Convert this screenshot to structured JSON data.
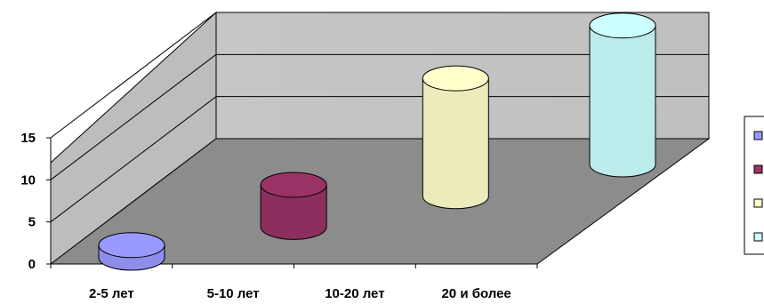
{
  "chart_data": {
    "type": "bar",
    "style": "3d-cylinder",
    "categories": [
      "2-5 лет",
      "5-10 лет",
      "10-20 лет",
      "20 и более"
    ],
    "values": [
      1.5,
      5,
      14,
      16.5
    ],
    "colors": [
      "#9999ff",
      "#993366",
      "#ffffcc",
      "#ccffff"
    ],
    "yticks": [
      0,
      5,
      10,
      15
    ],
    "ylim": [
      0,
      20
    ],
    "grid": true,
    "legend": "right",
    "legend_labels": [
      "",
      "",
      "",
      ""
    ],
    "wall_color": "#c0c0c0",
    "floor_color": "#808080"
  }
}
